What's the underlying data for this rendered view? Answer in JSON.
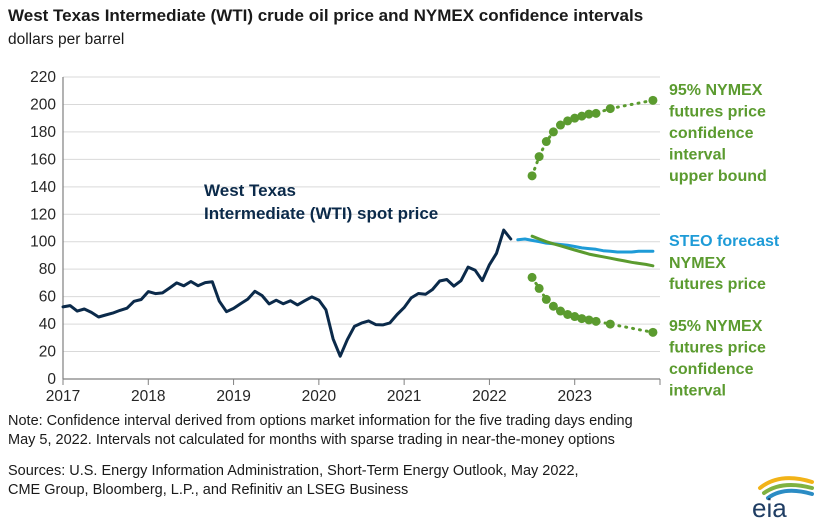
{
  "header": {
    "title": "West Texas Intermediate (WTI) crude oil price and NYMEX confidence intervals",
    "subtitle": "dollars per barrel"
  },
  "footer": {
    "note_line1": "Note: Confidence interval derived from options market information for the five trading days ending",
    "note_line2": "May 5, 2022. Intervals not calculated for months with sparse trading in near-the-money options",
    "sources_line1": "Sources: U.S. Energy Information Administration, Short-Term Energy Outlook, May 2022,",
    "sources_line2": "CME Group, Bloomberg, L.P., and Refinitiv an LSEG Business",
    "logo_text": "eia"
  },
  "chart_data": {
    "type": "line",
    "title": "West Texas Intermediate (WTI) crude oil price and NYMEX confidence intervals",
    "ylabel": "dollars per barrel",
    "xlim": [
      2017,
      2024
    ],
    "ylim": [
      0,
      220
    ],
    "yticks": [
      0,
      20,
      40,
      60,
      80,
      100,
      120,
      140,
      160,
      180,
      200,
      220
    ],
    "xticks": [
      "2017",
      "2018",
      "2019",
      "2020",
      "2021",
      "2022",
      "2023"
    ],
    "grid": "horizontal",
    "series": [
      {
        "name": "West Texas Intermediate (WTI) spot price",
        "label_lines": [
          "West Texas",
          "Intermediate (WTI) spot price"
        ],
        "color": "#0b2a4a",
        "style": "solid",
        "x": [
          2017.0,
          2017.083,
          2017.167,
          2017.25,
          2017.333,
          2017.417,
          2017.5,
          2017.583,
          2017.667,
          2017.75,
          2017.833,
          2017.917,
          2018.0,
          2018.083,
          2018.167,
          2018.25,
          2018.333,
          2018.417,
          2018.5,
          2018.583,
          2018.667,
          2018.75,
          2018.833,
          2018.917,
          2019.0,
          2019.083,
          2019.167,
          2019.25,
          2019.333,
          2019.417,
          2019.5,
          2019.583,
          2019.667,
          2019.75,
          2019.833,
          2019.917,
          2020.0,
          2020.083,
          2020.167,
          2020.25,
          2020.333,
          2020.417,
          2020.5,
          2020.583,
          2020.667,
          2020.75,
          2020.833,
          2020.917,
          2021.0,
          2021.083,
          2021.167,
          2021.25,
          2021.333,
          2021.417,
          2021.5,
          2021.583,
          2021.667,
          2021.75,
          2021.833,
          2021.917,
          2022.0,
          2022.083,
          2022.167,
          2022.25
        ],
        "values": [
          52.5,
          53.5,
          49.5,
          51,
          48.5,
          45.2,
          46.6,
          48,
          50,
          51.6,
          56.6,
          57.9,
          63.7,
          62.2,
          62.7,
          66.3,
          70,
          67.9,
          71,
          68,
          70.2,
          70.8,
          56.7,
          49,
          51.4,
          54.9,
          58.2,
          63.9,
          60.8,
          54.7,
          57.4,
          54.8,
          57,
          54,
          57,
          59.8,
          57.5,
          50.5,
          29.2,
          16.6,
          28.6,
          38.3,
          40.7,
          42.3,
          39.6,
          39.4,
          40.9,
          47,
          52,
          59.1,
          62.3,
          61.7,
          65.2,
          71.4,
          72.5,
          67.7,
          71.6,
          81.5,
          79.2,
          71.7,
          83.2,
          91.6,
          108.5,
          102
        ]
      },
      {
        "name": "STEO forecast",
        "color": "#1e9bd7",
        "style": "solid",
        "x": [
          2022.333,
          2022.417,
          2022.5,
          2022.583,
          2022.667,
          2022.75,
          2022.833,
          2022.917,
          2023.0,
          2023.083,
          2023.167,
          2023.25,
          2023.333,
          2023.417,
          2023.5,
          2023.583,
          2023.667,
          2023.75,
          2023.833,
          2023.917
        ],
        "values": [
          101.5,
          102,
          101,
          100,
          99,
          98.5,
          98,
          97.5,
          96.5,
          95.5,
          95,
          94.5,
          93.5,
          93,
          92.5,
          92.5,
          92.5,
          93,
          93,
          93
        ]
      },
      {
        "name": "NYMEX futures price",
        "label_lines": [
          "NYMEX",
          "futures price"
        ],
        "color": "#5b9b2f",
        "style": "solid",
        "x": [
          2022.5,
          2022.583,
          2022.667,
          2022.75,
          2022.833,
          2022.917,
          2023.0,
          2023.083,
          2023.167,
          2023.25,
          2023.333,
          2023.417,
          2023.5,
          2023.583,
          2023.667,
          2023.75,
          2023.833,
          2023.917
        ],
        "values": [
          104,
          102,
          100,
          98.5,
          97,
          95.5,
          94,
          92.5,
          91,
          90,
          89,
          88,
          87,
          86,
          85,
          84.2,
          83.5,
          82.5
        ]
      },
      {
        "name": "95% NYMEX futures price confidence interval upper bound",
        "label_lines": [
          "95% NYMEX",
          "futures price",
          "confidence",
          "interval",
          "upper bound"
        ],
        "color": "#5b9b2f",
        "style": "dotted-markers",
        "x": [
          2022.5,
          2022.583,
          2022.667,
          2022.75,
          2022.833,
          2022.917,
          2023.0,
          2023.083,
          2023.167,
          2023.25,
          2023.417,
          2023.583,
          2023.75,
          2023.917
        ],
        "values": [
          148,
          162,
          173,
          180,
          185,
          188,
          190,
          191.5,
          193,
          193.5,
          197,
          199,
          201,
          203
        ],
        "markers": [
          true,
          true,
          true,
          true,
          true,
          true,
          true,
          true,
          true,
          true,
          true,
          false,
          false,
          true
        ]
      },
      {
        "name": "95% NYMEX futures price confidence interval",
        "label_lines": [
          "95% NYMEX",
          "futures price",
          "confidence",
          "interval"
        ],
        "color": "#5b9b2f",
        "style": "dotted-markers",
        "x": [
          2022.5,
          2022.583,
          2022.667,
          2022.75,
          2022.833,
          2022.917,
          2023.0,
          2023.083,
          2023.167,
          2023.25,
          2023.417,
          2023.583,
          2023.75,
          2023.917
        ],
        "values": [
          74,
          66,
          58,
          53,
          49.5,
          47,
          45.5,
          44,
          43,
          42,
          40,
          38,
          36,
          34
        ],
        "markers": [
          true,
          true,
          true,
          true,
          true,
          true,
          true,
          true,
          true,
          true,
          true,
          false,
          false,
          true
        ]
      }
    ]
  },
  "colors": {
    "wti": "#0b2a4a",
    "steo": "#1e9bd7",
    "nymex": "#5b9b2f",
    "grid": "#d9d9d9",
    "axis": "#808080"
  }
}
